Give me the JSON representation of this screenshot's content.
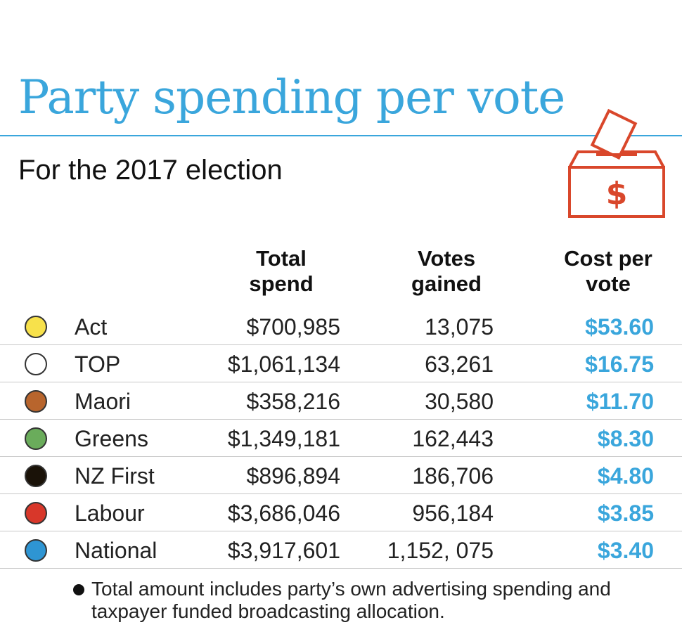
{
  "header": {
    "title": "Party spending per vote",
    "subtitle": "For the 2017 election",
    "icon": "ballot-box-dollar-icon"
  },
  "colors": {
    "accent": "#3aa6dc",
    "icon": "#d9472b"
  },
  "table": {
    "headers": {
      "spend": [
        "Total",
        "spend"
      ],
      "votes": [
        "Votes",
        "gained"
      ],
      "cost": [
        "Cost per",
        "vote"
      ]
    }
  },
  "chart_data": {
    "type": "table",
    "title": "Party spending per vote",
    "subtitle": "For the 2017 election",
    "columns": [
      "Total spend",
      "Votes gained",
      "Cost per vote"
    ],
    "rows": [
      {
        "party": "Act",
        "color": "#f7e14b",
        "spend": "$700,985",
        "votes": "13,075",
        "cost": "$53.60"
      },
      {
        "party": "TOP",
        "color": "#ffffff",
        "spend": "$1,061,134",
        "votes": "63,261",
        "cost": "$16.75"
      },
      {
        "party": "Maori",
        "color": "#b8652d",
        "spend": "$358,216",
        "votes": "30,580",
        "cost": "$11.70"
      },
      {
        "party": "Greens",
        "color": "#6aac5b",
        "spend": "$1,349,181",
        "votes": "162,443",
        "cost": "$8.30"
      },
      {
        "party": "NZ First",
        "color": "#1a1208",
        "spend": "$896,894",
        "votes": "186,706",
        "cost": "$4.80"
      },
      {
        "party": "Labour",
        "color": "#d8372a",
        "spend": "$3,686,046",
        "votes": "956,184",
        "cost": "$3.85"
      },
      {
        "party": "National",
        "color": "#2e95d3",
        "spend": "$3,917,601",
        "votes": "1,152, 075",
        "cost": "$3.40"
      }
    ]
  },
  "footnote": "Total amount includes party’s own advertising spending and taxpayer funded broadcasting allocation."
}
